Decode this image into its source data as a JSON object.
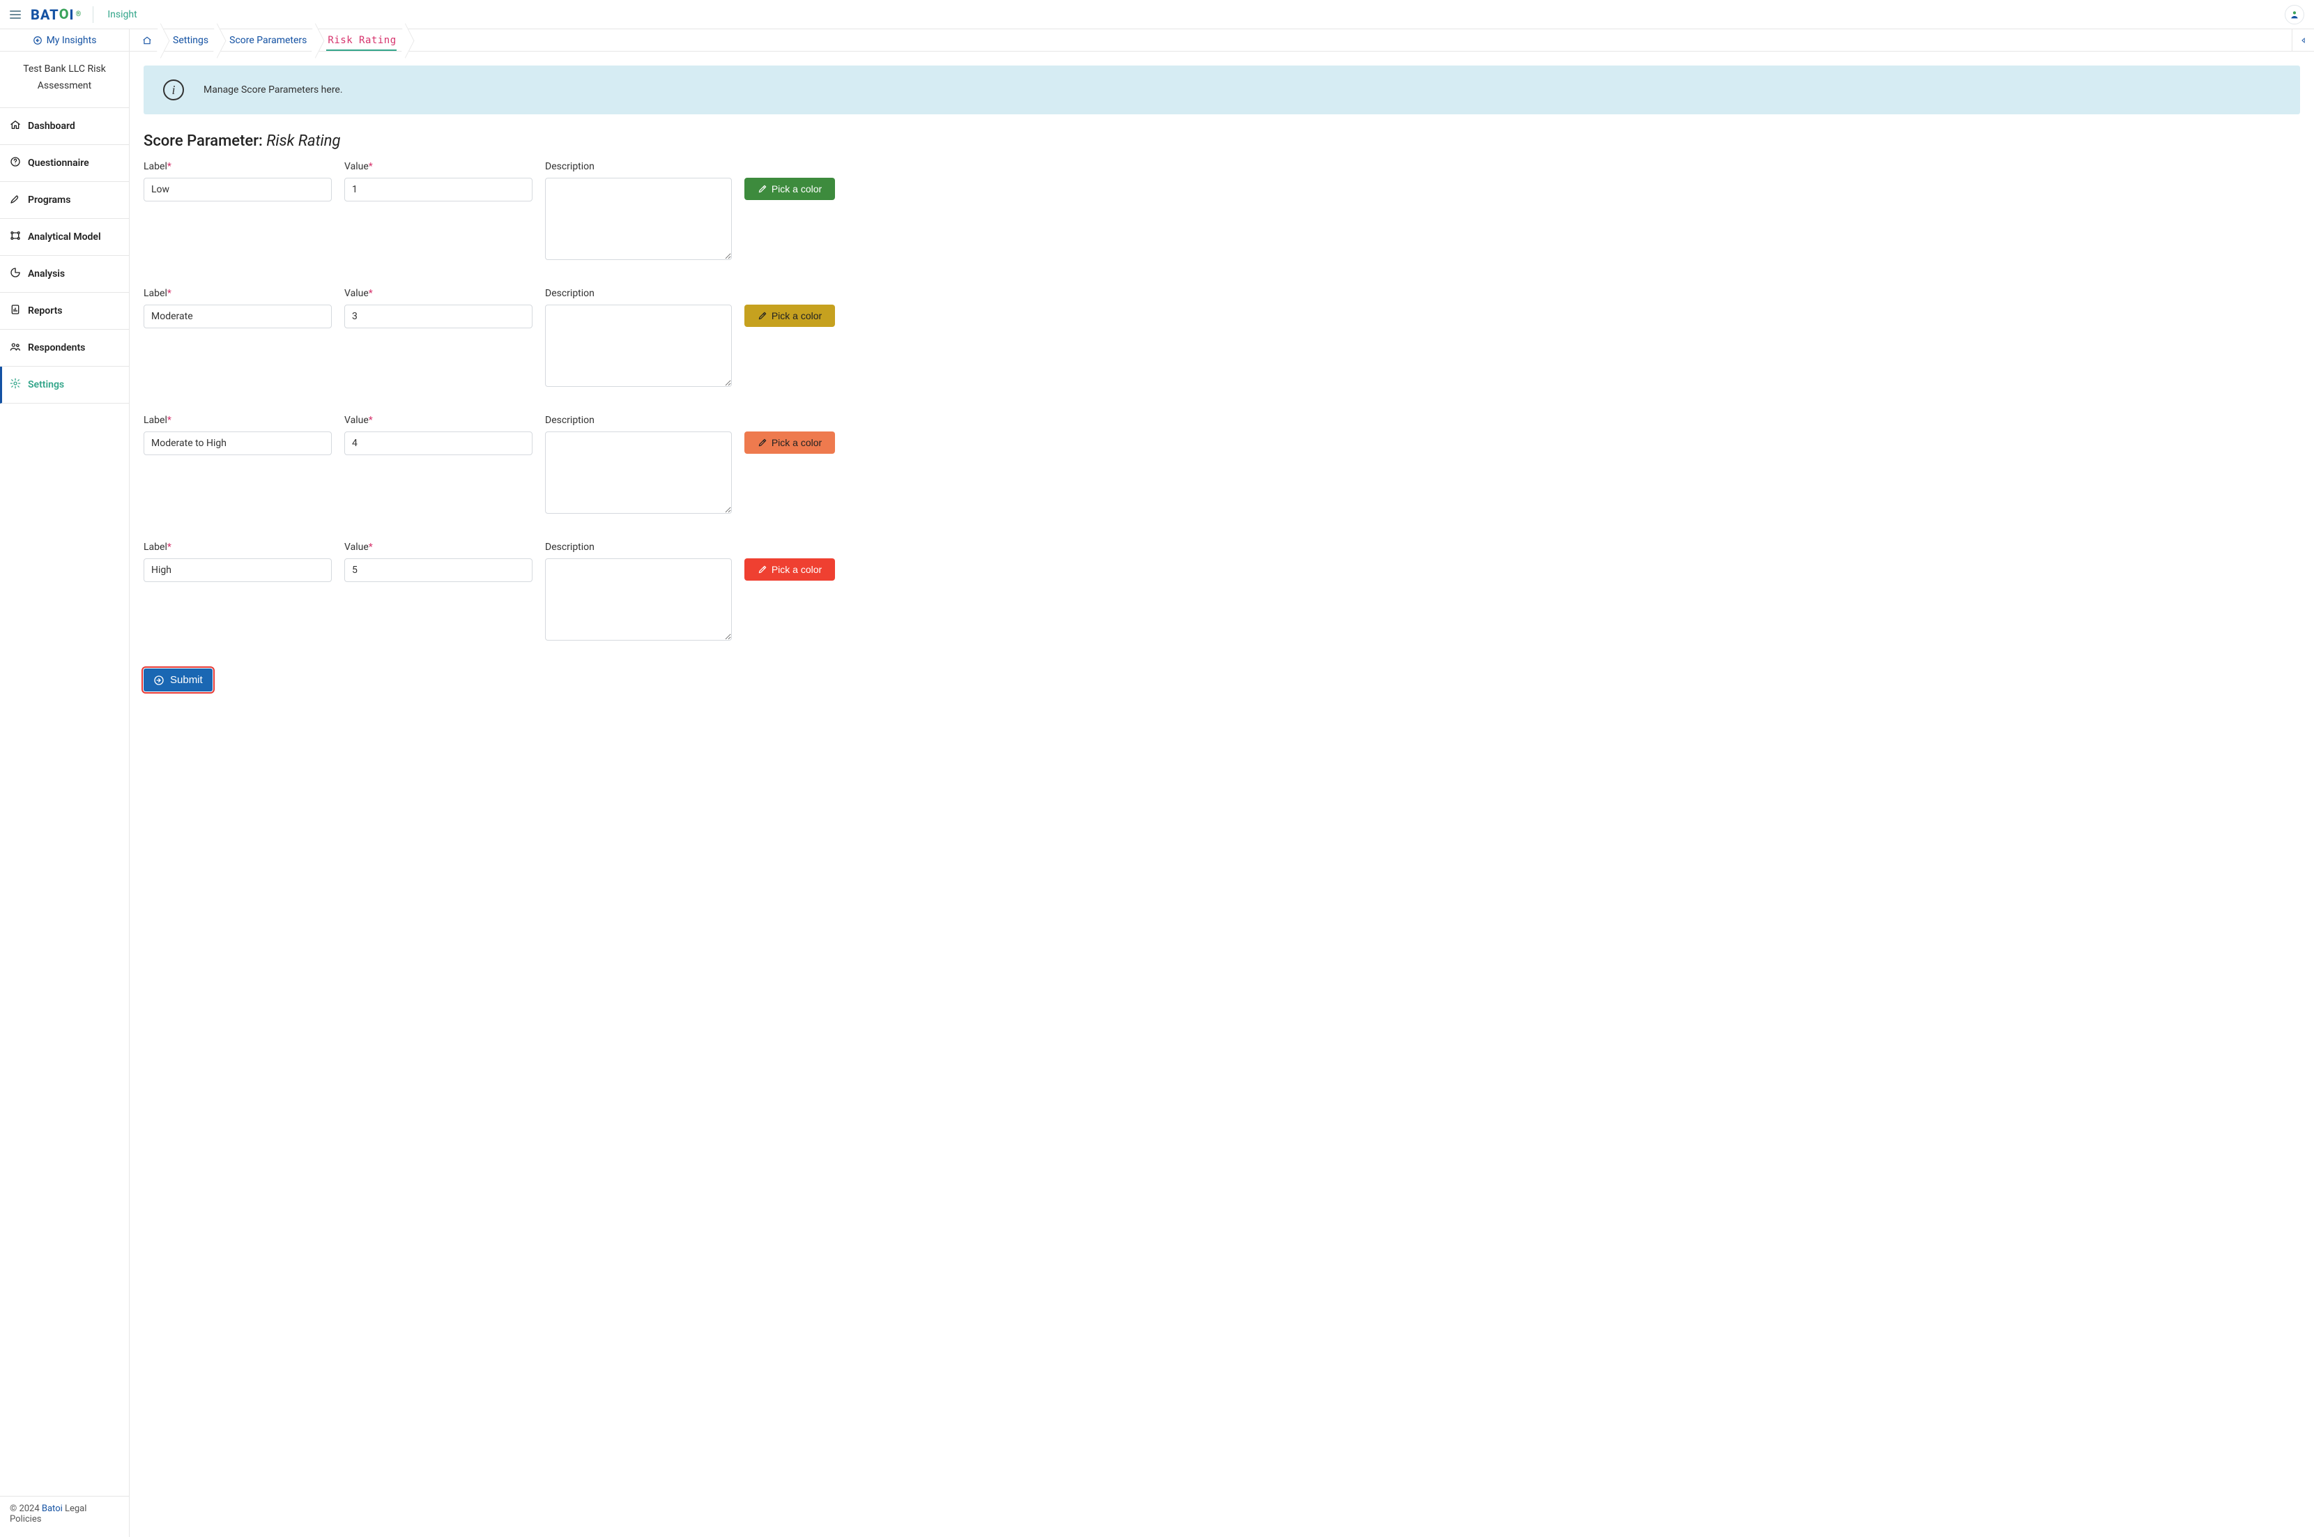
{
  "header": {
    "brand_prefix": "BAT",
    "brand_o": "O",
    "brand_suffix": "I",
    "product_name": "Insight"
  },
  "sidebar": {
    "my_insights_label": "My Insights",
    "tenant_name": "Test Bank LLC Risk Assessment",
    "items": [
      {
        "label": "Dashboard",
        "icon": "home"
      },
      {
        "label": "Questionnaire",
        "icon": "help"
      },
      {
        "label": "Programs",
        "icon": "pen"
      },
      {
        "label": "Analytical Model",
        "icon": "model"
      },
      {
        "label": "Analysis",
        "icon": "pie"
      },
      {
        "label": "Reports",
        "icon": "report"
      },
      {
        "label": "Respondents",
        "icon": "people"
      },
      {
        "label": "Settings",
        "icon": "gear",
        "active": true
      }
    ],
    "footer": {
      "copyright_prefix": "© 2024 ",
      "brand_link": "Batoi",
      "copyright_suffix": " Legal Policies"
    }
  },
  "breadcrumbs": {
    "items": [
      {
        "label": "",
        "is_home": true
      },
      {
        "label": "Settings"
      },
      {
        "label": "Score Parameters"
      },
      {
        "label": "Risk Rating",
        "current": true
      }
    ]
  },
  "banner": {
    "text": "Manage Score Parameters here."
  },
  "page": {
    "title_prefix": "Score Parameter: ",
    "title_name": "Risk Rating"
  },
  "form": {
    "labels": {
      "label": "Label",
      "value": "Value",
      "description": "Description",
      "pick_color": "Pick a color"
    },
    "rows": [
      {
        "label": "Low",
        "value": "1",
        "description": "",
        "color": "#3d8b3d",
        "text_on_dark": true
      },
      {
        "label": "Moderate",
        "value": "3",
        "description": "",
        "color": "#c6a11f",
        "text_on_dark": false
      },
      {
        "label": "Moderate to High",
        "value": "4",
        "description": "",
        "color": "#ee7a4e",
        "text_on_dark": false
      },
      {
        "label": "High",
        "value": "5",
        "description": "",
        "color": "#ef4031",
        "text_on_dark": true
      }
    ],
    "submit_label": "Submit"
  }
}
